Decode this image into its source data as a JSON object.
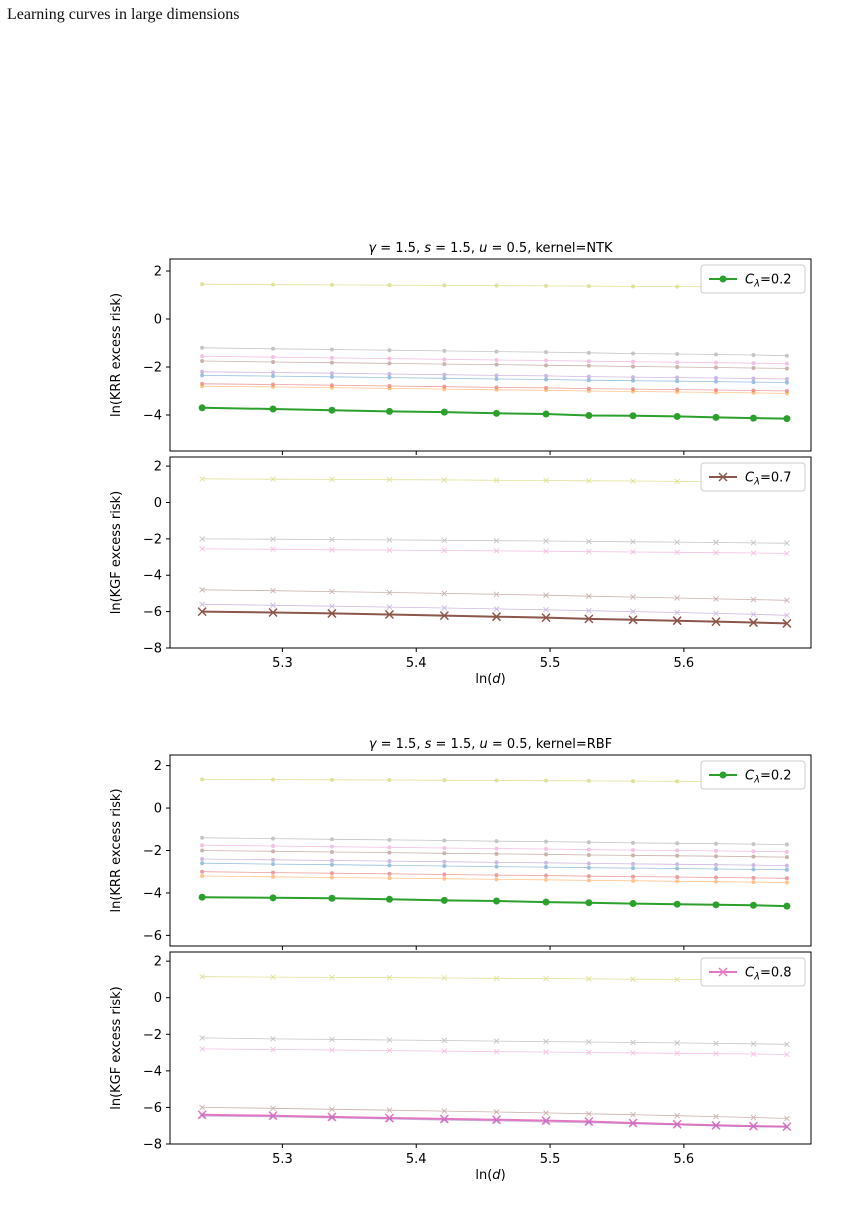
{
  "header": {
    "running_title": "Learning curves in large dimensions"
  },
  "colors": {
    "highlight_krr": "#2ca02c",
    "highlight_kgf_ntk": "#8c564b",
    "highlight_kgf_rbf": "#e377c2",
    "faint": [
      "#bcbd22",
      "#7f7f7f",
      "#e377c2",
      "#8c564b",
      "#9467bd",
      "#1f77b4",
      "#d62728",
      "#ff7f0e",
      "#2ca02c"
    ]
  },
  "chart_data": [
    {
      "type": "line",
      "title": "γ = 1.5, s = 1.5, u = 0.5, kernel=NTK",
      "panels": [
        {
          "id": "ntk-krr",
          "ylabel": "ln(KRR excess risk)",
          "ylim": [
            -5.5,
            2.5
          ],
          "yticks": [
            2,
            0,
            -2,
            -4
          ],
          "xlim": [
            5.216,
            5.695
          ],
          "x": [
            5.24,
            5.293,
            5.337,
            5.38,
            5.421,
            5.46,
            5.497,
            5.529,
            5.562,
            5.595,
            5.624,
            5.652,
            5.677
          ],
          "legend": {
            "label": "C_λ=0.2",
            "marker": "o",
            "placement": "top-right",
            "series": 8
          },
          "series": [
            {
              "faint": true,
              "marker": "o",
              "values": [
                1.45,
                1.43,
                1.42,
                1.41,
                1.4,
                1.39,
                1.38,
                1.37,
                1.36,
                1.35,
                1.34,
                1.33,
                1.32
              ]
            },
            {
              "faint": true,
              "marker": "o",
              "values": [
                -1.2,
                -1.24,
                -1.27,
                -1.3,
                -1.33,
                -1.36,
                -1.38,
                -1.41,
                -1.44,
                -1.46,
                -1.48,
                -1.5,
                -1.53
              ]
            },
            {
              "faint": true,
              "marker": "o",
              "values": [
                -1.55,
                -1.59,
                -1.62,
                -1.65,
                -1.68,
                -1.71,
                -1.73,
                -1.76,
                -1.78,
                -1.8,
                -1.82,
                -1.84,
                -1.86
              ]
            },
            {
              "faint": true,
              "marker": "o",
              "values": [
                -1.75,
                -1.79,
                -1.82,
                -1.85,
                -1.88,
                -1.9,
                -1.93,
                -1.95,
                -1.98,
                -2.0,
                -2.02,
                -2.04,
                -2.06
              ]
            },
            {
              "faint": true,
              "marker": "o",
              "values": [
                -2.2,
                -2.23,
                -2.26,
                -2.29,
                -2.32,
                -2.35,
                -2.37,
                -2.4,
                -2.42,
                -2.44,
                -2.46,
                -2.48,
                -2.5
              ]
            },
            {
              "faint": true,
              "marker": "o",
              "values": [
                -2.35,
                -2.38,
                -2.41,
                -2.44,
                -2.47,
                -2.5,
                -2.52,
                -2.55,
                -2.57,
                -2.59,
                -2.61,
                -2.63,
                -2.65
              ]
            },
            {
              "faint": true,
              "marker": "o",
              "values": [
                -2.7,
                -2.73,
                -2.76,
                -2.79,
                -2.82,
                -2.85,
                -2.87,
                -2.9,
                -2.92,
                -2.94,
                -2.96,
                -2.98,
                -3.0
              ]
            },
            {
              "faint": true,
              "marker": "o",
              "values": [
                -2.8,
                -2.83,
                -2.86,
                -2.89,
                -2.92,
                -2.95,
                -2.97,
                -3.0,
                -3.02,
                -3.04,
                -3.06,
                -3.08,
                -3.1
              ]
            },
            {
              "faint": false,
              "marker": "o",
              "values": [
                -3.7,
                -3.75,
                -3.8,
                -3.85,
                -3.88,
                -3.93,
                -3.96,
                -4.02,
                -4.03,
                -4.06,
                -4.1,
                -4.13,
                -4.15
              ]
            }
          ]
        },
        {
          "id": "ntk-kgf",
          "ylabel": "ln(KGF excess risk)",
          "ylim": [
            -8,
            2.5
          ],
          "yticks": [
            2,
            0,
            -2,
            -4,
            -6,
            -8
          ],
          "xlim": [
            5.216,
            5.695
          ],
          "xticks": [
            5.3,
            5.4,
            5.5,
            5.6
          ],
          "xlabel": "ln(d)",
          "x": [
            5.24,
            5.293,
            5.337,
            5.38,
            5.421,
            5.46,
            5.497,
            5.529,
            5.562,
            5.595,
            5.624,
            5.652,
            5.677
          ],
          "legend": {
            "label": "C_λ=0.7",
            "marker": "x",
            "placement": "top-right",
            "series": 5
          },
          "series": [
            {
              "faint": true,
              "marker": "x",
              "values": [
                1.3,
                1.28,
                1.27,
                1.25,
                1.24,
                1.22,
                1.21,
                1.19,
                1.18,
                1.16,
                1.15,
                1.13,
                1.12
              ]
            },
            {
              "faint": true,
              "marker": "x",
              "values": [
                -2.0,
                -2.02,
                -2.04,
                -2.06,
                -2.08,
                -2.1,
                -2.12,
                -2.14,
                -2.16,
                -2.18,
                -2.2,
                -2.22,
                -2.24
              ]
            },
            {
              "faint": true,
              "marker": "x",
              "values": [
                -2.55,
                -2.57,
                -2.6,
                -2.62,
                -2.64,
                -2.66,
                -2.68,
                -2.7,
                -2.72,
                -2.74,
                -2.76,
                -2.78,
                -2.8
              ]
            },
            {
              "faint": true,
              "marker": "x",
              "values": [
                -4.8,
                -4.85,
                -4.9,
                -4.95,
                -5.0,
                -5.05,
                -5.1,
                -5.15,
                -5.2,
                -5.25,
                -5.3,
                -5.34,
                -5.38
              ]
            },
            {
              "faint": true,
              "marker": "x",
              "values": [
                -5.6,
                -5.65,
                -5.7,
                -5.75,
                -5.8,
                -5.85,
                -5.9,
                -5.95,
                -6.0,
                -6.05,
                -6.1,
                -6.15,
                -6.2
              ]
            },
            {
              "faint": false,
              "marker": "x",
              "values": [
                -6.0,
                -6.05,
                -6.1,
                -6.16,
                -6.22,
                -6.28,
                -6.33,
                -6.4,
                -6.45,
                -6.5,
                -6.55,
                -6.6,
                -6.65
              ]
            }
          ]
        }
      ]
    },
    {
      "type": "line",
      "title": "γ = 1.5, s = 1.5, u = 0.5, kernel=RBF",
      "panels": [
        {
          "id": "rbf-krr",
          "ylabel": "ln(KRR excess risk)",
          "ylim": [
            -6.5,
            2.5
          ],
          "yticks": [
            2,
            0,
            -2,
            -4,
            -6
          ],
          "xlim": [
            5.216,
            5.695
          ],
          "x": [
            5.24,
            5.293,
            5.337,
            5.38,
            5.421,
            5.46,
            5.497,
            5.529,
            5.562,
            5.595,
            5.624,
            5.652,
            5.677
          ],
          "legend": {
            "label": "C_λ=0.2",
            "marker": "o",
            "placement": "top-right",
            "series": 8
          },
          "series": [
            {
              "faint": true,
              "marker": "o",
              "values": [
                1.35,
                1.34,
                1.33,
                1.32,
                1.31,
                1.3,
                1.29,
                1.28,
                1.27,
                1.26,
                1.25,
                1.24,
                1.23
              ]
            },
            {
              "faint": true,
              "marker": "o",
              "values": [
                -1.4,
                -1.44,
                -1.47,
                -1.5,
                -1.53,
                -1.56,
                -1.58,
                -1.61,
                -1.64,
                -1.66,
                -1.68,
                -1.7,
                -1.72
              ]
            },
            {
              "faint": true,
              "marker": "o",
              "values": [
                -1.75,
                -1.79,
                -1.82,
                -1.85,
                -1.88,
                -1.91,
                -1.93,
                -1.96,
                -1.98,
                -2.0,
                -2.02,
                -2.04,
                -2.06
              ]
            },
            {
              "faint": true,
              "marker": "o",
              "values": [
                -2.0,
                -2.04,
                -2.07,
                -2.1,
                -2.13,
                -2.16,
                -2.18,
                -2.21,
                -2.23,
                -2.25,
                -2.27,
                -2.29,
                -2.31
              ]
            },
            {
              "faint": true,
              "marker": "o",
              "values": [
                -2.4,
                -2.44,
                -2.47,
                -2.5,
                -2.53,
                -2.56,
                -2.58,
                -2.61,
                -2.63,
                -2.65,
                -2.67,
                -2.69,
                -2.71
              ]
            },
            {
              "faint": true,
              "marker": "o",
              "values": [
                -2.6,
                -2.64,
                -2.67,
                -2.7,
                -2.73,
                -2.76,
                -2.78,
                -2.81,
                -2.83,
                -2.85,
                -2.87,
                -2.89,
                -2.91
              ]
            },
            {
              "faint": true,
              "marker": "o",
              "values": [
                -3.0,
                -3.04,
                -3.07,
                -3.1,
                -3.13,
                -3.16,
                -3.18,
                -3.21,
                -3.23,
                -3.25,
                -3.27,
                -3.29,
                -3.31
              ]
            },
            {
              "faint": true,
              "marker": "o",
              "values": [
                -3.2,
                -3.24,
                -3.27,
                -3.3,
                -3.33,
                -3.36,
                -3.38,
                -3.41,
                -3.43,
                -3.45,
                -3.47,
                -3.49,
                -3.51
              ]
            },
            {
              "faint": false,
              "marker": "o",
              "values": [
                -4.2,
                -4.23,
                -4.25,
                -4.3,
                -4.35,
                -4.38,
                -4.43,
                -4.46,
                -4.5,
                -4.53,
                -4.56,
                -4.58,
                -4.62
              ]
            }
          ]
        },
        {
          "id": "rbf-kgf",
          "ylabel": "ln(KGF excess risk)",
          "ylim": [
            -8,
            2.5
          ],
          "yticks": [
            2,
            0,
            -2,
            -4,
            -6,
            -8
          ],
          "xlim": [
            5.216,
            5.695
          ],
          "xticks": [
            5.3,
            5.4,
            5.5,
            5.6
          ],
          "xlabel": "ln(d)",
          "x": [
            5.24,
            5.293,
            5.337,
            5.38,
            5.421,
            5.46,
            5.497,
            5.529,
            5.562,
            5.595,
            5.624,
            5.652,
            5.677
          ],
          "legend": {
            "label": "C_λ=0.8",
            "marker": "x",
            "placement": "top-right",
            "series": 2
          },
          "series": [
            {
              "faint": true,
              "marker": "x",
              "values": [
                1.15,
                1.13,
                1.11,
                1.1,
                1.08,
                1.06,
                1.05,
                1.03,
                1.01,
                1.0,
                0.98,
                0.96,
                0.95
              ]
            },
            {
              "faint": true,
              "marker": "x",
              "values": [
                -2.2,
                -2.25,
                -2.28,
                -2.31,
                -2.34,
                -2.37,
                -2.4,
                -2.42,
                -2.45,
                -2.47,
                -2.5,
                -2.52,
                -2.55
              ]
            },
            {
              "faint": true,
              "marker": "x",
              "values": [
                -2.8,
                -2.83,
                -2.86,
                -2.89,
                -2.92,
                -2.95,
                -2.97,
                -3.0,
                -3.02,
                -3.04,
                -3.06,
                -3.08,
                -3.1
              ]
            },
            {
              "faint": true,
              "marker": "x",
              "values": [
                -6.0,
                -6.05,
                -6.1,
                -6.15,
                -6.2,
                -6.25,
                -6.3,
                -6.35,
                -6.4,
                -6.45,
                -6.5,
                -6.55,
                -6.6
              ]
            },
            {
              "faint": false,
              "marker": "x",
              "values": [
                -6.4,
                -6.45,
                -6.52,
                -6.58,
                -6.63,
                -6.67,
                -6.72,
                -6.77,
                -6.85,
                -6.92,
                -6.98,
                -7.02,
                -7.05
              ]
            },
            {
              "faint": true,
              "marker": "x",
              "values": [
                -6.48,
                -6.52,
                -6.58,
                -6.64,
                -6.7,
                -6.74,
                -6.8,
                -6.84,
                -6.9,
                -6.96,
                -7.02,
                -7.06,
                -7.08
              ]
            }
          ]
        }
      ]
    }
  ]
}
